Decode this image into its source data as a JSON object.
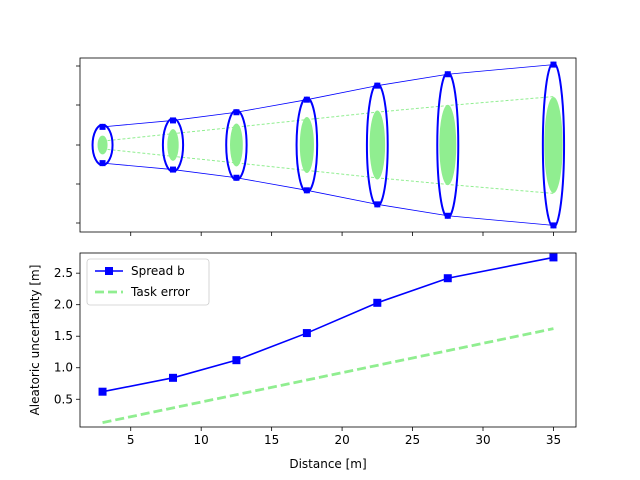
{
  "chart_data": [
    {
      "type": "ellipse-diagram",
      "x": [
        3,
        8,
        12.5,
        17.5,
        22.5,
        27.5,
        35
      ],
      "spread_b": [
        0.62,
        0.84,
        1.12,
        1.55,
        2.03,
        2.42,
        2.75
      ],
      "task_error": [
        0.13,
        0.38,
        0.6,
        0.85,
        1.1,
        1.32,
        1.62
      ],
      "series_colors": {
        "spread": "#0000ff",
        "task": "#90ee90"
      },
      "grid": false
    },
    {
      "type": "line",
      "xlabel": "Distance [m]",
      "ylabel": "Aleatoric uncertainty [m]",
      "xlim": [
        1.4,
        36.6
      ],
      "ylim": [
        0.06,
        2.82
      ],
      "x_ticks": [
        5,
        10,
        15,
        20,
        25,
        30,
        35
      ],
      "y_ticks": [
        0.5,
        1.0,
        1.5,
        2.0,
        2.5
      ],
      "x_tick_labels": [
        "5",
        "10",
        "15",
        "20",
        "25",
        "30",
        "35"
      ],
      "y_tick_labels": [
        "0.5",
        "1.0",
        "1.5",
        "2.0",
        "2.5"
      ],
      "series": [
        {
          "name": "Spread b",
          "x": [
            3,
            8,
            12.5,
            17.5,
            22.5,
            27.5,
            35
          ],
          "values": [
            0.62,
            0.84,
            1.12,
            1.55,
            2.03,
            2.42,
            2.75
          ],
          "color": "#0000ff",
          "style": "solid",
          "marker": "square"
        },
        {
          "name": "Task error",
          "x": [
            3,
            35
          ],
          "values": [
            0.13,
            1.62
          ],
          "color": "#90ee90",
          "style": "dashed",
          "marker": "none"
        }
      ],
      "legend_position": "upper-left",
      "grid": false
    }
  ]
}
